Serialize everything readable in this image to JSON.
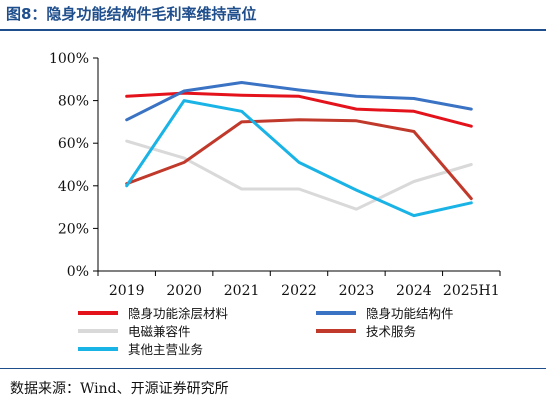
{
  "title": "图8：隐身功能结构件毛利率维持高位",
  "source": "数据来源：Wind、开源证券研究所",
  "chart_data": {
    "type": "line",
    "title": "",
    "xlabel": "",
    "ylabel": "",
    "categories": [
      "2019",
      "2020",
      "2021",
      "2022",
      "2023",
      "2024",
      "2025H1"
    ],
    "ylim": [
      0,
      100
    ],
    "yticks": [
      0,
      20,
      40,
      60,
      80,
      100
    ],
    "ytick_labels": [
      "0%",
      "20%",
      "40%",
      "60%",
      "80%",
      "100%"
    ],
    "grid": false,
    "legend_position": "bottom",
    "series": [
      {
        "name": "隐身功能涂层材料",
        "color": "#e3121b",
        "values": [
          82,
          83.5,
          82.5,
          82,
          76,
          75,
          68
        ]
      },
      {
        "name": "隐身功能结构件",
        "color": "#3a72c4",
        "values": [
          71,
          84.5,
          88.5,
          85,
          82,
          81,
          76
        ]
      },
      {
        "name": "电磁兼容件",
        "color": "#d9d9d9",
        "values": [
          61,
          53,
          38.5,
          38.5,
          29,
          42,
          50
        ]
      },
      {
        "name": "技术服务",
        "color": "#c0392b",
        "values": [
          41,
          51,
          70,
          71,
          70.5,
          65.5,
          34
        ]
      },
      {
        "name": "其他主营业务",
        "color": "#19b3e6",
        "values": [
          40,
          80,
          75,
          51,
          38,
          26,
          32
        ]
      }
    ]
  }
}
